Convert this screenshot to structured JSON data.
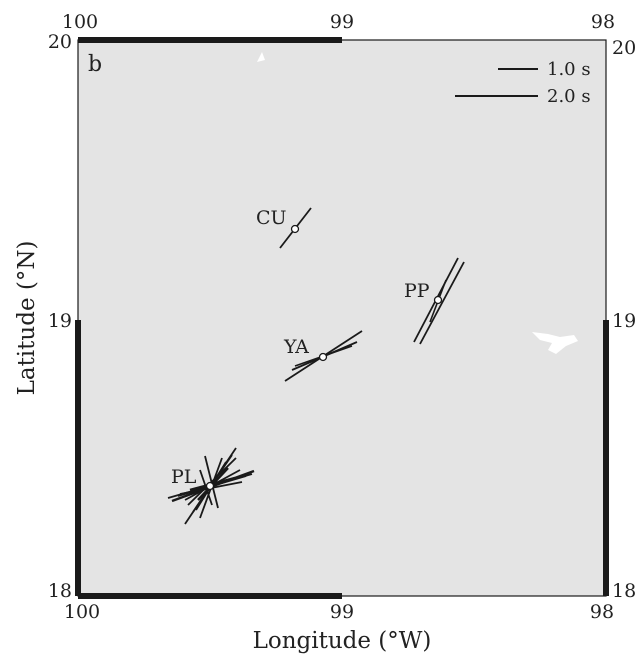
{
  "panel_label": "b",
  "axes": {
    "xlabel": "Longitude (°W)",
    "ylabel": "Latitude (°N)",
    "x_ticks": [
      "100",
      "99",
      "98"
    ],
    "y_ticks": [
      "20",
      "19",
      "18"
    ]
  },
  "legend": {
    "placement": "top-right",
    "items": [
      {
        "label": "1.0 s",
        "delay_s": 1.0
      },
      {
        "label": "2.0 s",
        "delay_s": 2.0
      }
    ]
  },
  "colors": {
    "ocean": "#e4e4e4",
    "land_patch": "#ffffff",
    "bars": "#1a1a1a",
    "frame": "#1a1a1a"
  },
  "stations": [
    {
      "name": "CU",
      "lon": 99.18,
      "lat": 19.33
    },
    {
      "name": "YA",
      "lon": 98.98,
      "lat": 18.86
    },
    {
      "name": "PP",
      "lon": 98.62,
      "lat": 19.07
    },
    {
      "name": "PL",
      "lon": 99.49,
      "lat": 18.4
    }
  ]
}
